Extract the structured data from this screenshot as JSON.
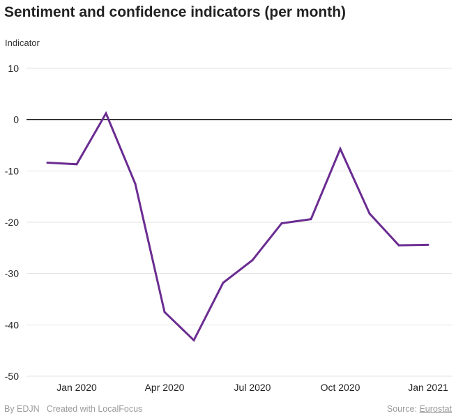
{
  "chart_data": {
    "type": "line",
    "title": "Sentiment and confidence indicators (per month)",
    "ylabel": "Indicator",
    "xlabel": "",
    "x": [
      "2019-12",
      "2020-01",
      "2020-02",
      "2020-03",
      "2020-04",
      "2020-05",
      "2020-06",
      "2020-07",
      "2020-08",
      "2020-09",
      "2020-10",
      "2020-11",
      "2020-12",
      "2021-01"
    ],
    "series": [
      {
        "name": "",
        "values": [
          -8.4,
          -8.7,
          1.2,
          -12.5,
          -37.5,
          -43.0,
          -31.8,
          -27.4,
          -20.2,
          -19.4,
          -5.7,
          -18.3,
          -24.5,
          -24.4
        ],
        "color": "#6a2c91"
      }
    ],
    "ylim": [
      -50,
      10
    ],
    "yticks": [
      10,
      0,
      -10,
      -20,
      -30,
      -40,
      -50
    ],
    "xticks": [
      {
        "x": "2020-01",
        "label": "Jan 2020"
      },
      {
        "x": "2020-04",
        "label": "Apr 2020"
      },
      {
        "x": "2020-07",
        "label": "Jul 2020"
      },
      {
        "x": "2020-10",
        "label": "Oct 2020"
      },
      {
        "x": "2021-01",
        "label": "Jan 2021"
      }
    ],
    "grid": true,
    "zero_line": true,
    "legend": "none"
  },
  "footer": {
    "by": "By EDJN",
    "created": "Created with LocalFocus",
    "source_label": "Source:",
    "source_link": "Eurostat"
  },
  "colors": {
    "line": "#6a2c91",
    "grid": "#e3e3e3",
    "zero": "#000000",
    "axis": "#555555",
    "text": "#222222",
    "footer": "#9a9a9a"
  }
}
